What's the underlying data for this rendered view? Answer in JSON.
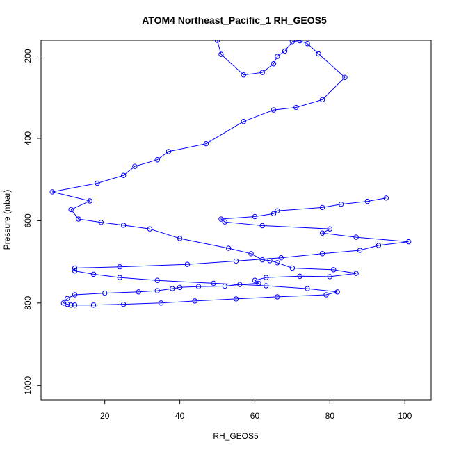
{
  "chart_data": {
    "type": "line",
    "title": "ATOM4 Northeast_Pacific_1 RH_GEOS5",
    "xlabel": "RH_GEOS5",
    "ylabel": "Pressure (mbar)",
    "xlim": [
      3,
      107
    ],
    "ylim": [
      1035,
      162
    ],
    "y_reversed": true,
    "x_ticks": [
      20,
      40,
      60,
      80,
      100
    ],
    "y_ticks": [
      200,
      400,
      600,
      800,
      1000
    ],
    "grid": false,
    "line_color": "#0000ff",
    "marker": "open-circle",
    "x": [
      50,
      51,
      57,
      62,
      65,
      66,
      68,
      70,
      72,
      74,
      77,
      84,
      78,
      71,
      65,
      57,
      47,
      37,
      34,
      28,
      25,
      18,
      6,
      16,
      11,
      13,
      19,
      25,
      32,
      40,
      53,
      59,
      62,
      64,
      66,
      70,
      81,
      87,
      80,
      72,
      63,
      60,
      61,
      56,
      52,
      45,
      40,
      38,
      34,
      29,
      20,
      12,
      10,
      9,
      10,
      11,
      12,
      17,
      25,
      35,
      44,
      55,
      66,
      79,
      82,
      74,
      63,
      49,
      34,
      24,
      17,
      12,
      12,
      24,
      42,
      55,
      67,
      78,
      88,
      93,
      101,
      87,
      78,
      80,
      62,
      52,
      51,
      60,
      65,
      66,
      78,
      83,
      90,
      95
    ],
    "y": [
      162,
      196,
      246,
      240,
      219,
      201,
      188,
      165,
      163,
      170,
      195,
      252,
      306,
      325,
      331,
      359,
      413,
      432,
      452,
      468,
      490,
      509,
      530,
      552,
      573,
      596,
      604,
      611,
      620,
      643,
      667,
      680,
      695,
      697,
      702,
      715,
      719,
      728,
      736,
      735,
      738,
      745,
      752,
      755,
      759,
      760,
      762,
      765,
      770,
      773,
      776,
      780,
      789,
      800,
      803,
      805,
      805,
      805,
      803,
      800,
      795,
      790,
      785,
      780,
      773,
      765,
      758,
      752,
      745,
      738,
      730,
      722,
      715,
      712,
      706,
      698,
      690,
      680,
      672,
      660,
      651,
      640,
      630,
      620,
      612,
      603,
      596,
      590,
      583,
      576,
      568,
      560,
      553,
      545
    ]
  }
}
